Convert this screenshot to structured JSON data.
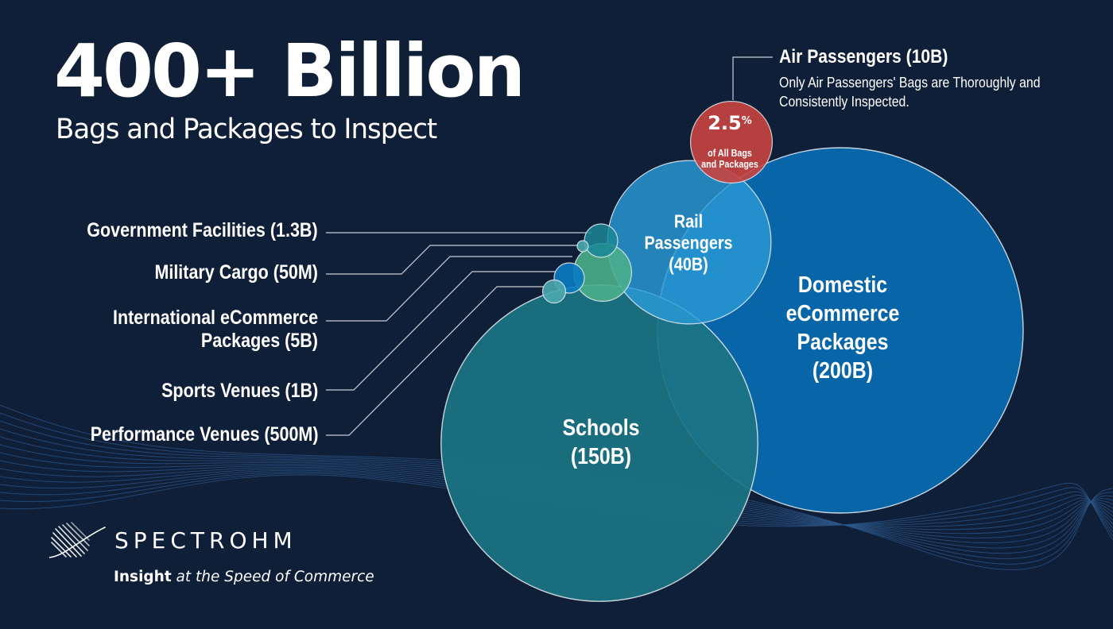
{
  "header": {
    "headline": "400+ Billion",
    "subhead": "Bags and Packages to Inspect"
  },
  "colors": {
    "background": "#0f1f38",
    "domestic": "#0866a8",
    "schools": "#1b7382",
    "rail": "#2a9ad5",
    "air": "#c94340",
    "international": "#4aae8a",
    "government": "#1b8797",
    "sports": "#0a7bc0",
    "performance": "#4aa9ae",
    "military": "#4aa9ae",
    "leader_line": "#c9ced6",
    "wave": "#2c5688"
  },
  "chart_data": {
    "type": "bubble",
    "title": "400+ Billion",
    "subtitle": "Bags and Packages to Inspect",
    "unit": "billions of bags/packages",
    "series": [
      {
        "key": "domestic",
        "name": "Domestic eCommerce Packages",
        "display": "Domestic\neCommerce\nPackages\n(200B)",
        "value": 200
      },
      {
        "key": "schools",
        "name": "Schools",
        "display": "Schools\n(150B)",
        "value": 150
      },
      {
        "key": "rail",
        "name": "Rail Passengers",
        "display": "Rail\nPassengers\n(40B)",
        "value": 40
      },
      {
        "key": "air",
        "name": "Air Passengers",
        "display": "Air Passengers (10B)",
        "value": 10,
        "share_percent": 2.5
      },
      {
        "key": "international",
        "name": "International eCommerce Packages",
        "display": "International eCommerce\nPackages (5B)",
        "value": 5
      },
      {
        "key": "government",
        "name": "Government Facilities",
        "display": "Government Facilities (1.3B)",
        "value": 1.3
      },
      {
        "key": "sports",
        "name": "Sports Venues",
        "display": "Sports Venues (1B)",
        "value": 1
      },
      {
        "key": "performance",
        "name": "Performance Venues",
        "display": "Performance Venues (500M)",
        "value": 0.5
      },
      {
        "key": "military",
        "name": "Military Cargo",
        "display": "Military Cargo (50M)",
        "value": 0.05
      }
    ]
  },
  "legend": {
    "government": "Government Facilities (1.3B)",
    "military": "Military Cargo (50M)",
    "international_line1": "International eCommerce",
    "international_line2": "Packages (5B)",
    "sports": "Sports Venues (1B)",
    "performance": "Performance Venues (500M)"
  },
  "air_callout": {
    "title": "Air Passengers (10B)",
    "description": "Only Air Passengers' Bags are Thoroughly and Consistently Inspected.",
    "percent": "2.5",
    "percent_sign": "%",
    "sub_line1": "of All Bags",
    "sub_line2": "and Packages"
  },
  "circle_labels": {
    "domestic": "Domestic\neCommerce\nPackages\n(200B)",
    "schools": "Schools\n(150B)",
    "rail": "Rail\nPassengers\n(40B)"
  },
  "brand": {
    "logo_icon": "wave-mesh-logo-icon",
    "name": "SPECTROHM",
    "tagline_bold": "Insight",
    "tagline_rest": " at the Speed of Commerce"
  }
}
